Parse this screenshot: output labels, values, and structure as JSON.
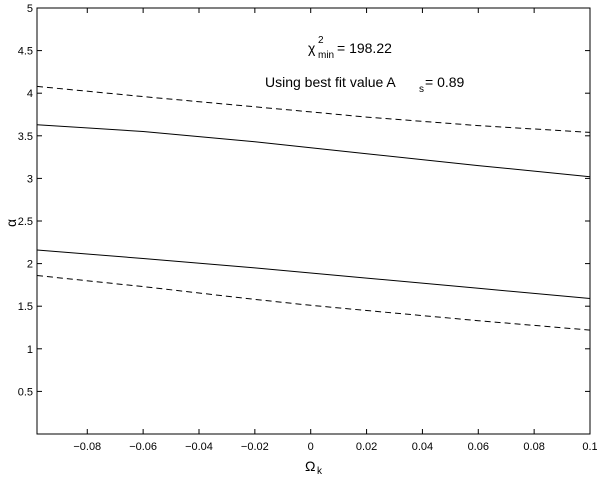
{
  "chart_data": {
    "type": "line",
    "title": "",
    "xlabel": "Ω",
    "xlabel_sub": "k",
    "ylabel": "α",
    "xlim": [
      -0.098,
      0.1
    ],
    "ylim": [
      0,
      5
    ],
    "x_ticks": [
      -0.08,
      -0.06,
      -0.04,
      -0.02,
      0,
      0.02,
      0.04,
      0.06,
      0.08,
      0.1
    ],
    "x_tick_labels": [
      "−0.08",
      "−0.06",
      "−0.04",
      "−0.02",
      "0",
      "0.02",
      "0.04",
      "0.06",
      "0.08",
      "0.1"
    ],
    "y_ticks": [
      0.5,
      1,
      1.5,
      2,
      2.5,
      3,
      3.5,
      4,
      4.5,
      5
    ],
    "y_tick_labels": [
      "0.5",
      "1",
      "1.5",
      "2",
      "2.5",
      "3",
      "3.5",
      "4",
      "4.5",
      "5"
    ],
    "grid": false,
    "legend": "none",
    "annotations": {
      "chi_symbol": "χ",
      "chi_sup": "2",
      "chi_sub": "min",
      "chi_value": " = 198.22",
      "best_fit_text": "Using best fit value A",
      "best_fit_sub": "s",
      "best_fit_value": " = 0.89"
    },
    "series": [
      {
        "style": "dashed",
        "x": [
          -0.098,
          -0.06,
          -0.02,
          0,
          0.02,
          0.06,
          0.1
        ],
        "y": [
          4.08,
          3.96,
          3.84,
          3.78,
          3.72,
          3.62,
          3.54
        ]
      },
      {
        "style": "solid",
        "x": [
          -0.098,
          -0.06,
          -0.02,
          0,
          0.02,
          0.06,
          0.1
        ],
        "y": [
          3.63,
          3.55,
          3.43,
          3.36,
          3.29,
          3.15,
          3.02
        ]
      },
      {
        "style": "solid",
        "x": [
          -0.098,
          -0.06,
          -0.02,
          0,
          0.02,
          0.06,
          0.1
        ],
        "y": [
          2.16,
          2.06,
          1.95,
          1.89,
          1.83,
          1.71,
          1.59
        ]
      },
      {
        "style": "dashed",
        "x": [
          -0.098,
          -0.06,
          -0.02,
          0,
          0.02,
          0.06,
          0.1
        ],
        "y": [
          1.86,
          1.73,
          1.58,
          1.51,
          1.45,
          1.33,
          1.22
        ]
      }
    ]
  }
}
